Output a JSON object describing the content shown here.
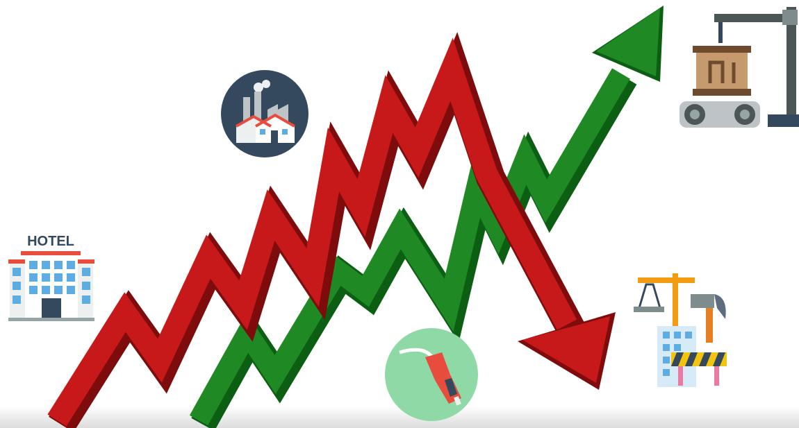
{
  "hotel_sign": "HOTEL"
}
